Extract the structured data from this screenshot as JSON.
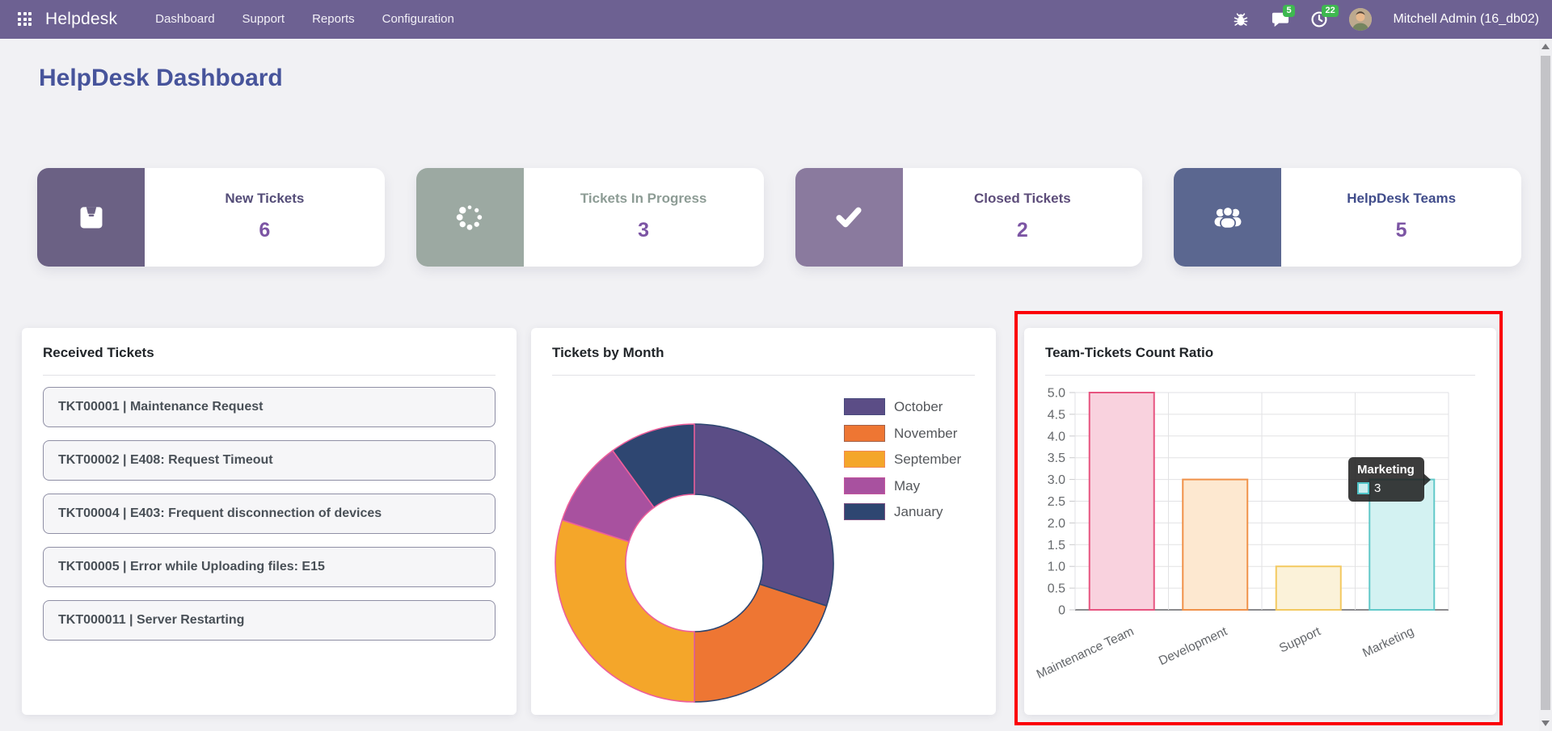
{
  "nav": {
    "app_name": "Helpdesk",
    "menu": [
      "Dashboard",
      "Support",
      "Reports",
      "Configuration"
    ],
    "messages_badge": "5",
    "activities_badge": "22",
    "user": "Mitchell Admin (16_db02)"
  },
  "page": {
    "title": "HelpDesk Dashboard"
  },
  "kpis": [
    {
      "label": "New Tickets",
      "value": "6",
      "icon": "inbox-icon",
      "block_color": "#6B6184",
      "label_color": "#544D78"
    },
    {
      "label": "Tickets In Progress",
      "value": "3",
      "icon": "spinner-icon",
      "block_color": "#9CA9A2",
      "label_color": "#8D9C95"
    },
    {
      "label": "Closed Tickets",
      "value": "2",
      "icon": "check-icon",
      "block_color": "#8A7A9E",
      "label_color": "#5D4D7A"
    },
    {
      "label": "HelpDesk Teams",
      "value": "5",
      "icon": "users-icon",
      "block_color": "#5B6790",
      "label_color": "#414D8B"
    }
  ],
  "panels": {
    "received_tickets": {
      "title": "Received Tickets",
      "items": [
        "TKT00001 | Maintenance Request",
        "TKT00002 | E408: Request Timeout",
        "TKT00004 | E403: Frequent disconnection of devices",
        "TKT00005 | Error while Uploading files: E15",
        "TKT000011 | Server Restarting"
      ]
    },
    "tickets_by_month": {
      "title": "Tickets by Month"
    },
    "team_ratio": {
      "title": "Team-Tickets Count Ratio"
    }
  },
  "chart_data": [
    {
      "type": "pie",
      "subtype": "donut",
      "title": "Tickets by Month",
      "labels": [
        "October",
        "November",
        "September",
        "May",
        "January"
      ],
      "values": [
        3,
        2,
        3,
        1,
        1
      ],
      "colors": [
        "#5B4D86",
        "#EE7633",
        "#F4A62A",
        "#A8519F",
        "#2E4671"
      ],
      "border_colors": [
        "#2E4671",
        "#2E4671",
        "#ED5F9B",
        "#ED5F9B",
        "#ED5F9B"
      ],
      "legend_position": "right"
    },
    {
      "type": "bar",
      "title": "Team-Tickets Count Ratio",
      "categories": [
        "Maintenance Team",
        "Development",
        "Support",
        "Marketing"
      ],
      "values": [
        5,
        3,
        1,
        3
      ],
      "fill_colors": [
        "#F9D2DE",
        "#FDE8D0",
        "#FBF2D9",
        "#D3F2F2"
      ],
      "border_colors": [
        "#E75480",
        "#F0924A",
        "#F3C960",
        "#62C9C9"
      ],
      "ylim": [
        0,
        5
      ],
      "ytick_step": 0.5,
      "grid": true,
      "xlabel_rotation": -25,
      "tooltip": {
        "title": "Marketing",
        "value": "3",
        "swatch_fill": "#CDEFF0",
        "swatch_border": "#4FC3C7"
      }
    }
  ]
}
